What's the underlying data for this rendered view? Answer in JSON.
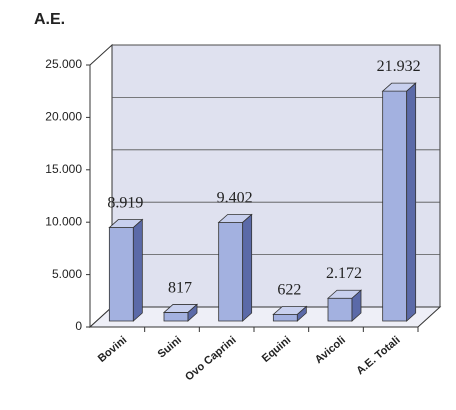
{
  "chart_data": {
    "type": "bar",
    "title": "A.E.",
    "categories": [
      "Bovini",
      "Suini",
      "Ovo Caprini",
      "Equini",
      "Avicoli",
      "A.E. Totali"
    ],
    "values": [
      8919,
      817,
      9402,
      622,
      2172,
      21932
    ],
    "value_labels": [
      "8.919",
      "817",
      "9.402",
      "622",
      "2.172",
      "21.932"
    ],
    "color": "#a3b1e0",
    "ylim": [
      0,
      25000
    ],
    "yticks": [
      0,
      {
        "value": 5000,
        "label": "5.000"
      },
      {
        "value": 10000,
        "label": "10.000"
      },
      {
        "value": 15000,
        "label": "15.000"
      },
      {
        "value": 20000,
        "label": "20.000"
      },
      {
        "value": 25000,
        "label": "25.000"
      }
    ],
    "grid": true
  }
}
